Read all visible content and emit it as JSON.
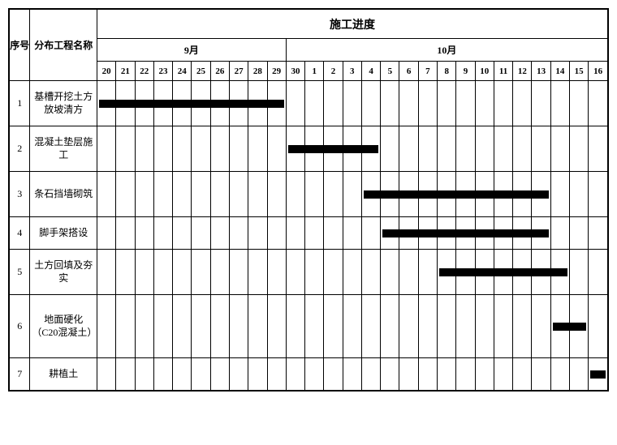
{
  "headers": {
    "seq": "序号",
    "name": "分布工程名称",
    "progress": "施工进度",
    "month1": "9月",
    "month2": "10月"
  },
  "days_sept": [
    "20",
    "21",
    "22",
    "23",
    "24",
    "25",
    "26",
    "27",
    "28",
    "29"
  ],
  "days_oct": [
    "30",
    "1",
    "2",
    "3",
    "4",
    "5",
    "6",
    "7",
    "8",
    "9",
    "10",
    "11",
    "12",
    "13",
    "14",
    "15",
    "16"
  ],
  "tasks": [
    {
      "seq": "1",
      "name": "基槽开挖土方放坡清方",
      "start": 0,
      "end": 9,
      "size": ""
    },
    {
      "seq": "2",
      "name": "混凝土垫层施工",
      "start": 10,
      "end": 14,
      "size": ""
    },
    {
      "seq": "3",
      "name": "条石挡墙砌筑",
      "start": 14,
      "end": 23,
      "size": ""
    },
    {
      "seq": "4",
      "name": "脚手架搭设",
      "start": 15,
      "end": 23,
      "size": "small"
    },
    {
      "seq": "5",
      "name": "土方回填及夯实",
      "start": 18,
      "end": 24,
      "size": ""
    },
    {
      "seq": "6",
      "name": "地面硬化（C20混凝土）",
      "start": 24,
      "end": 25,
      "size": "big"
    },
    {
      "seq": "7",
      "name": "耕植土",
      "start": 26,
      "end": 26,
      "size": "small"
    }
  ],
  "style": {
    "bar_color": "#000000",
    "border_color": "#000000",
    "background_color": "#ffffff",
    "font_family": "SimSun",
    "total_days": 27
  }
}
